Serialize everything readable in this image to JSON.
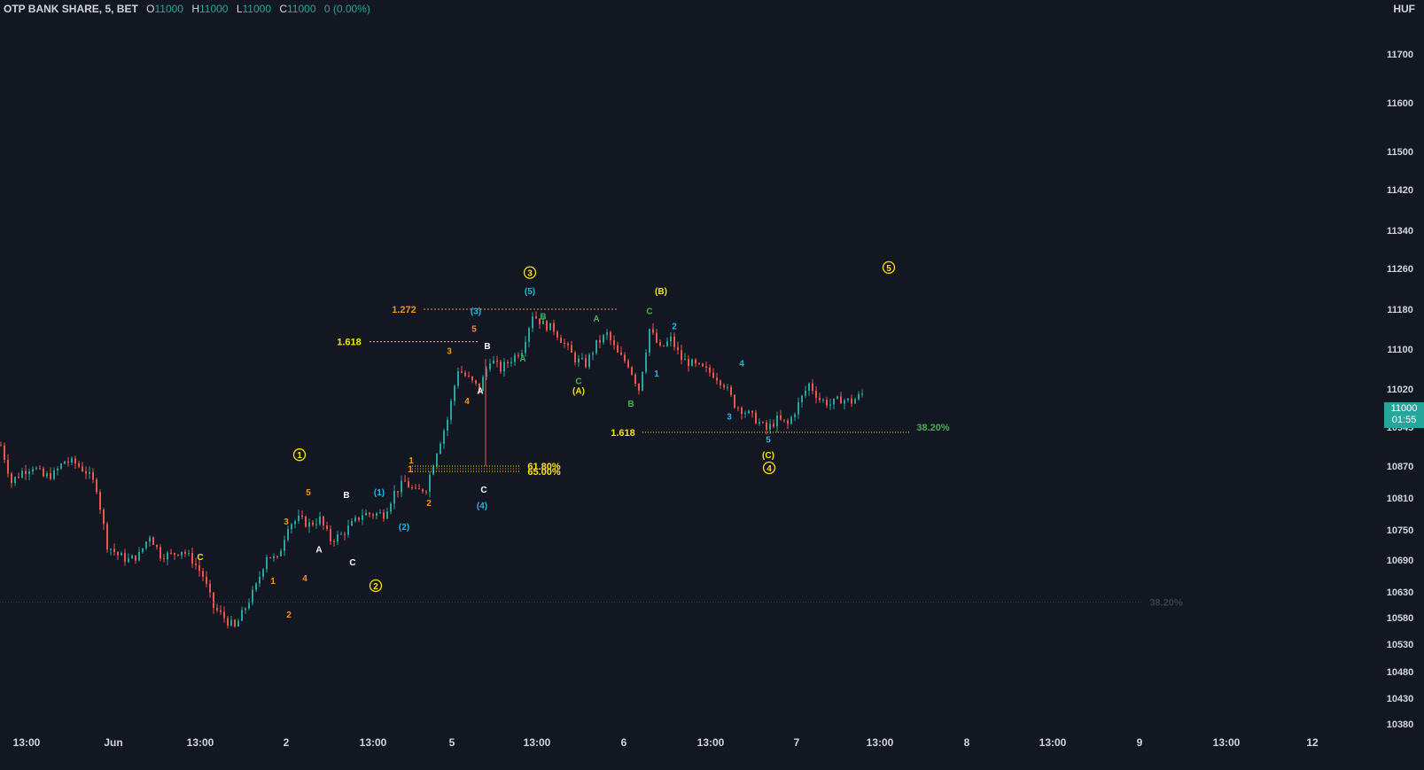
{
  "legend": {
    "symbol": "OTP BANK SHARE, 5, BET",
    "open_key": "O",
    "open": "11000",
    "high_key": "H",
    "high": "11000",
    "low_key": "L",
    "low": "11000",
    "close_key": "C",
    "close": "11000",
    "change": "0 (0.00%)"
  },
  "currency": "HUF",
  "price_badge": {
    "price": "11000",
    "countdown": "01:55"
  },
  "colors": {
    "background": "#131722",
    "up": "#26a69a",
    "down": "#ef5350",
    "text": "#d1d4dc",
    "yellow": "#fbe400",
    "orange": "#f7931a",
    "blue": "#22b8e6",
    "green": "#4caf50"
  },
  "chart_data": {
    "type": "candlestick",
    "title": "OTP BANK SHARE, 5, BET",
    "ylim": [
      10360,
      11800
    ],
    "y_ticks": [
      11700,
      11600,
      11500,
      11420,
      11340,
      11260,
      11180,
      11100,
      11020,
      10945,
      10870,
      10810,
      10750,
      10690,
      10630,
      10580,
      10530,
      10480,
      10430,
      10380
    ],
    "x_ticks": [
      "13:00",
      "Jun",
      "13:00",
      "2",
      "13:00",
      "5",
      "13:00",
      "6",
      "13:00",
      "7",
      "13:00",
      "8",
      "13:00",
      "9",
      "13:00",
      "12"
    ],
    "price_path": [
      {
        "t": 0,
        "p": 10910
      },
      {
        "t": 3,
        "p": 10840
      },
      {
        "t": 6,
        "p": 10860
      },
      {
        "t": 9,
        "p": 10870
      },
      {
        "t": 12,
        "p": 10850
      },
      {
        "t": 15,
        "p": 10855
      },
      {
        "t": 18,
        "p": 10880
      },
      {
        "t": 21,
        "p": 10875
      },
      {
        "t": 24,
        "p": 10860
      },
      {
        "t": 27,
        "p": 10830
      },
      {
        "t": 30,
        "p": 10720
      },
      {
        "t": 33,
        "p": 10700
      },
      {
        "t": 36,
        "p": 10690
      },
      {
        "t": 39,
        "p": 10700
      },
      {
        "t": 42,
        "p": 10740
      },
      {
        "t": 45,
        "p": 10700
      },
      {
        "t": 48,
        "p": 10700
      },
      {
        "t": 51,
        "p": 10710
      },
      {
        "t": 54,
        "p": 10690
      },
      {
        "t": 57,
        "p": 10660
      },
      {
        "t": 60,
        "p": 10600
      },
      {
        "t": 63,
        "p": 10580
      },
      {
        "t": 66,
        "p": 10560
      },
      {
        "t": 69,
        "p": 10600
      },
      {
        "t": 72,
        "p": 10640
      },
      {
        "t": 75,
        "p": 10700
      },
      {
        "t": 78,
        "p": 10690
      },
      {
        "t": 81,
        "p": 10760
      },
      {
        "t": 84,
        "p": 10770
      },
      {
        "t": 87,
        "p": 10760
      },
      {
        "t": 90,
        "p": 10770
      },
      {
        "t": 93,
        "p": 10730
      },
      {
        "t": 96,
        "p": 10740
      },
      {
        "t": 99,
        "p": 10760
      },
      {
        "t": 102,
        "p": 10780
      },
      {
        "t": 105,
        "p": 10780
      },
      {
        "t": 108,
        "p": 10780
      },
      {
        "t": 111,
        "p": 10820
      },
      {
        "t": 114,
        "p": 10840
      },
      {
        "t": 117,
        "p": 10820
      },
      {
        "t": 120,
        "p": 10830
      },
      {
        "t": 123,
        "p": 10900
      },
      {
        "t": 126,
        "p": 10960
      },
      {
        "t": 129,
        "p": 11060
      },
      {
        "t": 132,
        "p": 11040
      },
      {
        "t": 135,
        "p": 11020
      },
      {
        "t": 138,
        "p": 11080
      },
      {
        "t": 141,
        "p": 11060
      },
      {
        "t": 144,
        "p": 11080
      },
      {
        "t": 147,
        "p": 11100
      },
      {
        "t": 150,
        "p": 11170
      },
      {
        "t": 153,
        "p": 11150
      },
      {
        "t": 156,
        "p": 11140
      },
      {
        "t": 159,
        "p": 11110
      },
      {
        "t": 162,
        "p": 11080
      },
      {
        "t": 165,
        "p": 11070
      },
      {
        "t": 168,
        "p": 11110
      },
      {
        "t": 171,
        "p": 11130
      },
      {
        "t": 174,
        "p": 11090
      },
      {
        "t": 177,
        "p": 11070
      },
      {
        "t": 180,
        "p": 11020
      },
      {
        "t": 183,
        "p": 11140
      },
      {
        "t": 186,
        "p": 11100
      },
      {
        "t": 189,
        "p": 11120
      },
      {
        "t": 192,
        "p": 11080
      },
      {
        "t": 195,
        "p": 11070
      },
      {
        "t": 198,
        "p": 11060
      },
      {
        "t": 201,
        "p": 11050
      },
      {
        "t": 204,
        "p": 11030
      },
      {
        "t": 207,
        "p": 10990
      },
      {
        "t": 210,
        "p": 10975
      },
      {
        "t": 213,
        "p": 10960
      },
      {
        "t": 216,
        "p": 10940
      },
      {
        "t": 219,
        "p": 10960
      },
      {
        "t": 222,
        "p": 10950
      },
      {
        "t": 225,
        "p": 10990
      },
      {
        "t": 228,
        "p": 11030
      },
      {
        "t": 231,
        "p": 11000
      },
      {
        "t": 234,
        "p": 10990
      },
      {
        "t": 237,
        "p": 11000
      },
      {
        "t": 240,
        "p": 10995
      },
      {
        "t": 243,
        "p": 11010
      },
      {
        "t": 246,
        "p": 11000
      }
    ],
    "fib_levels": [
      {
        "label": "1.272",
        "price": 11180
      },
      {
        "label": "1.618",
        "price": 11115
      },
      {
        "label": "1.618",
        "price": 10935
      },
      {
        "label": "1",
        "price": 10865
      },
      {
        "label": "61.80%",
        "price": 10870
      },
      {
        "label": "65.00%",
        "price": 10860
      },
      {
        "label": "38.20%",
        "price": 10945
      },
      {
        "label": "38.20%",
        "price": 10610
      }
    ],
    "wave_labels": [
      {
        "text": "1",
        "circled": true,
        "color": "yellow",
        "price": 10885
      },
      {
        "text": "2",
        "circled": true,
        "color": "yellow",
        "price": 10635
      },
      {
        "text": "3",
        "circled": true,
        "color": "yellow",
        "price": 11245
      },
      {
        "text": "4",
        "circled": true,
        "color": "yellow",
        "price": 10860
      },
      {
        "text": "5",
        "circled": true,
        "color": "yellow",
        "price": 11255
      },
      {
        "text": "(1)",
        "color": "blue",
        "price": 10815
      },
      {
        "text": "(2)",
        "color": "blue",
        "price": 10750
      },
      {
        "text": "(3)",
        "color": "blue",
        "price": 11170
      },
      {
        "text": "(4)",
        "color": "blue",
        "price": 10790
      },
      {
        "text": "(5)",
        "color": "blue",
        "price": 11210
      },
      {
        "text": "(A)",
        "color": "yellow",
        "price": 11010
      },
      {
        "text": "(B)",
        "color": "yellow",
        "price": 11210
      },
      {
        "text": "(C)",
        "color": "yellow",
        "price": 10885
      },
      {
        "text": "A",
        "color": "white",
        "price": 10705
      },
      {
        "text": "B",
        "color": "white",
        "price": 10810
      },
      {
        "text": "C",
        "color": "white",
        "price": 10680
      },
      {
        "text": "A",
        "color": "white",
        "price": 11010
      },
      {
        "text": "B",
        "color": "white",
        "price": 11100
      },
      {
        "text": "C",
        "color": "white",
        "price": 10820
      },
      {
        "text": "C",
        "color": "yellow",
        "price": 10690
      },
      {
        "text": "1",
        "color": "orange",
        "price": 10645
      },
      {
        "text": "2",
        "color": "orange",
        "price": 10580
      },
      {
        "text": "3",
        "color": "orange",
        "price": 10760
      },
      {
        "text": "4",
        "color": "orange",
        "price": 10650
      },
      {
        "text": "5",
        "color": "orange",
        "price": 10815
      },
      {
        "text": "1",
        "color": "orange",
        "price": 10875
      },
      {
        "text": "2",
        "color": "orange",
        "price": 10795
      },
      {
        "text": "3",
        "color": "orange",
        "price": 11090
      },
      {
        "text": "4",
        "color": "orange",
        "price": 10990
      },
      {
        "text": "5",
        "color": "orange",
        "price": 11135
      },
      {
        "text": "A",
        "color": "green",
        "price": 11075
      },
      {
        "text": "B",
        "color": "green",
        "price": 11160
      },
      {
        "text": "C",
        "color": "green",
        "price": 11030
      },
      {
        "text": "A",
        "color": "green",
        "price": 11155
      },
      {
        "text": "B",
        "color": "green",
        "price": 10985
      },
      {
        "text": "C",
        "color": "green",
        "price": 11170
      },
      {
        "text": "1",
        "color": "blue",
        "price": 11045
      },
      {
        "text": "2",
        "color": "blue",
        "price": 11140
      },
      {
        "text": "3",
        "color": "blue",
        "price": 10960
      },
      {
        "text": "4",
        "color": "blue",
        "price": 11065
      },
      {
        "text": "5",
        "color": "blue",
        "price": 10915
      }
    ]
  }
}
